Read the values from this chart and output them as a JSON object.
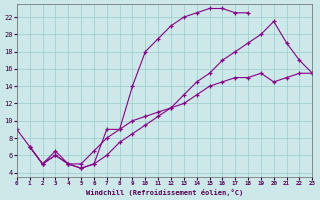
{
  "xlabel": "Windchill (Refroidissement éolien,°C)",
  "background_color": "#cce8e8",
  "grid_color": "#99cccc",
  "line_color": "#880088",
  "xlim": [
    0,
    23
  ],
  "ylim": [
    3.5,
    23.5
  ],
  "yticks": [
    4,
    6,
    8,
    10,
    12,
    14,
    16,
    18,
    20,
    22
  ],
  "xticks": [
    0,
    1,
    2,
    3,
    4,
    5,
    6,
    7,
    8,
    9,
    10,
    11,
    12,
    13,
    14,
    15,
    16,
    17,
    18,
    19,
    20,
    21,
    22,
    23
  ],
  "curve1_x": [
    0,
    1,
    2,
    3,
    4,
    5,
    6,
    7,
    8,
    9,
    10,
    11,
    12,
    13,
    14,
    15,
    16,
    17,
    18
  ],
  "curve1_y": [
    9,
    7,
    5,
    6,
    5,
    4.5,
    5,
    9,
    9,
    14,
    18,
    19.5,
    21,
    22,
    22.5,
    23,
    23,
    22.5,
    22.5
  ],
  "curve2_x": [
    1,
    2,
    3,
    4,
    5,
    6,
    7,
    8,
    9,
    10,
    11,
    12,
    13,
    14,
    15,
    16,
    17,
    18,
    19,
    20,
    21,
    22,
    23
  ],
  "curve2_y": [
    7,
    5,
    6,
    5,
    4.5,
    5,
    6,
    7.5,
    8.5,
    9.5,
    10.5,
    11.5,
    13,
    14.5,
    15.5,
    17,
    18,
    19,
    20,
    21.5,
    19,
    17,
    15.5
  ],
  "curve3_x": [
    1,
    2,
    3,
    4,
    5,
    6,
    7,
    8,
    9,
    10,
    11,
    12,
    13,
    14,
    15,
    16,
    17,
    18,
    19,
    20,
    21,
    22,
    23
  ],
  "curve3_y": [
    7,
    5,
    6.5,
    5,
    5,
    6.5,
    8,
    9,
    10,
    10.5,
    11,
    11.5,
    12,
    13,
    14,
    14.5,
    15,
    15,
    15.5,
    14.5,
    15,
    15.5,
    15.5
  ]
}
